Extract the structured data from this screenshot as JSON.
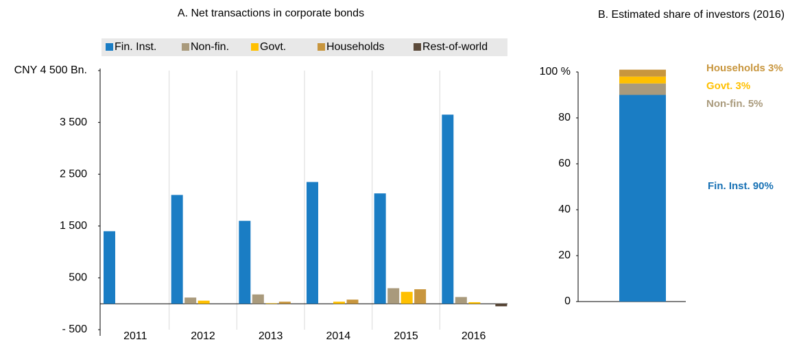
{
  "chart_data": [
    {
      "type": "bar",
      "title": "A. Net transactions in corporate bonds",
      "categories": [
        "2011",
        "2012",
        "2013",
        "2014",
        "2015",
        "2016"
      ],
      "series": [
        {
          "name": "Fin. Inst.",
          "color": "#1a7dc4",
          "values": [
            1400,
            2100,
            1600,
            2350,
            2130,
            3650
          ]
        },
        {
          "name": "Non-fin.",
          "color": "#a99a7c",
          "values": [
            0,
            120,
            180,
            0,
            300,
            130
          ]
        },
        {
          "name": "Govt.",
          "color": "#ffc000",
          "values": [
            0,
            60,
            10,
            40,
            230,
            30
          ]
        },
        {
          "name": "Households",
          "color": "#c8963e",
          "values": [
            0,
            0,
            40,
            80,
            280,
            0
          ]
        },
        {
          "name": "Rest-of-world",
          "color": "#5b4a3a",
          "values": [
            0,
            0,
            0,
            0,
            0,
            -50
          ]
        }
      ],
      "ylim": [
        -500,
        4500
      ],
      "yticks": [
        {
          "value": -500,
          "label": "- 500"
        },
        500,
        {
          "value": 1500,
          "label": "1 500"
        },
        {
          "value": 2500,
          "label": "2 500"
        },
        {
          "value": 3500,
          "label": "3 500"
        },
        {
          "value": 4500,
          "label": "CNY 4 500 Bn."
        }
      ]
    },
    {
      "type": "stacked_bar",
      "title": "B. Estimated share of investors (2016)",
      "series": [
        {
          "name": "Fin. Inst.",
          "color": "#1a7dc4",
          "label_color": "#1670b4",
          "values": [
            90
          ],
          "value_labels": [
            "Fin. Inst. 90%"
          ]
        },
        {
          "name": "Non-fin.",
          "color": "#a99a7c",
          "label_color": "#a99a7c",
          "values": [
            5
          ],
          "value_labels": [
            "Non-fin. 5%"
          ]
        },
        {
          "name": "Govt.",
          "color": "#ffc000",
          "label_color": "#ffc000",
          "values": [
            3
          ],
          "value_labels": [
            "Govt. 3%"
          ]
        },
        {
          "name": "Households",
          "color": "#c8963e",
          "label_color": "#c8963e",
          "values": [
            3
          ],
          "value_labels": [
            "Households 3%"
          ]
        }
      ],
      "ylim": [
        0,
        100
      ],
      "yticks": [
        0,
        20,
        40,
        60,
        80,
        {
          "value": 100,
          "label": "100 %"
        }
      ]
    }
  ]
}
